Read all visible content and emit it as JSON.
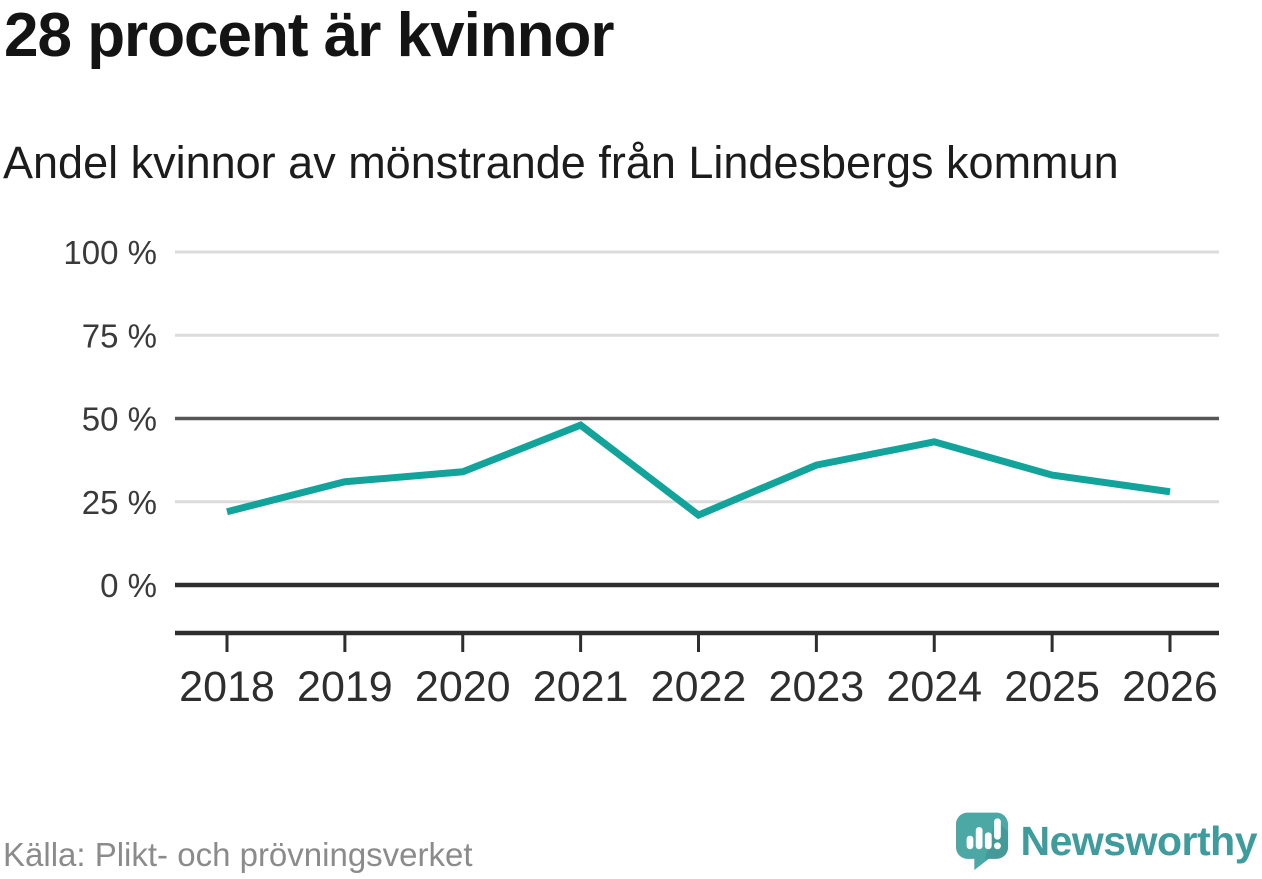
{
  "header": {
    "title": "28 procent är kvinnor",
    "subtitle": "Andel kvinnor av mönstrande från Lindesbergs kommun"
  },
  "chart_data": {
    "type": "line",
    "title": "28 procent är kvinnor",
    "subtitle": "Andel kvinnor av mönstrande från Lindesbergs kommun",
    "x": [
      "2018",
      "2019",
      "2020",
      "2021",
      "2022",
      "2023",
      "2024",
      "2025",
      "2026"
    ],
    "series": [
      {
        "name": "Andel kvinnor av mönstrande",
        "values": [
          22,
          31,
          34,
          48,
          21,
          36,
          43,
          33,
          28
        ]
      }
    ],
    "unit": "%",
    "ylim": [
      0,
      100
    ],
    "yticks": [
      0,
      25,
      50,
      75,
      100
    ],
    "ytick_labels": [
      "0 %",
      "25 %",
      "50 %",
      "75 %",
      "100 %"
    ],
    "grid": "horizontal-only",
    "legend": "none",
    "line_color": "#12a39b"
  },
  "footer": {
    "source": "Källa: Plikt- och prövningsverket",
    "brand_name": "Newsworthy"
  },
  "colors": {
    "accent_teal": "#12a39b",
    "logo_teal": "#4ba8a4",
    "logo_text_teal": "#3e9c9d",
    "grid_light": "#dcdcdc",
    "grid_mid": "#565656",
    "grid_zero": "#2e2e2e",
    "axis_text": "#3a3a3a",
    "x_label_text": "#2e2e2e",
    "source_text": "#8b8b8b"
  }
}
